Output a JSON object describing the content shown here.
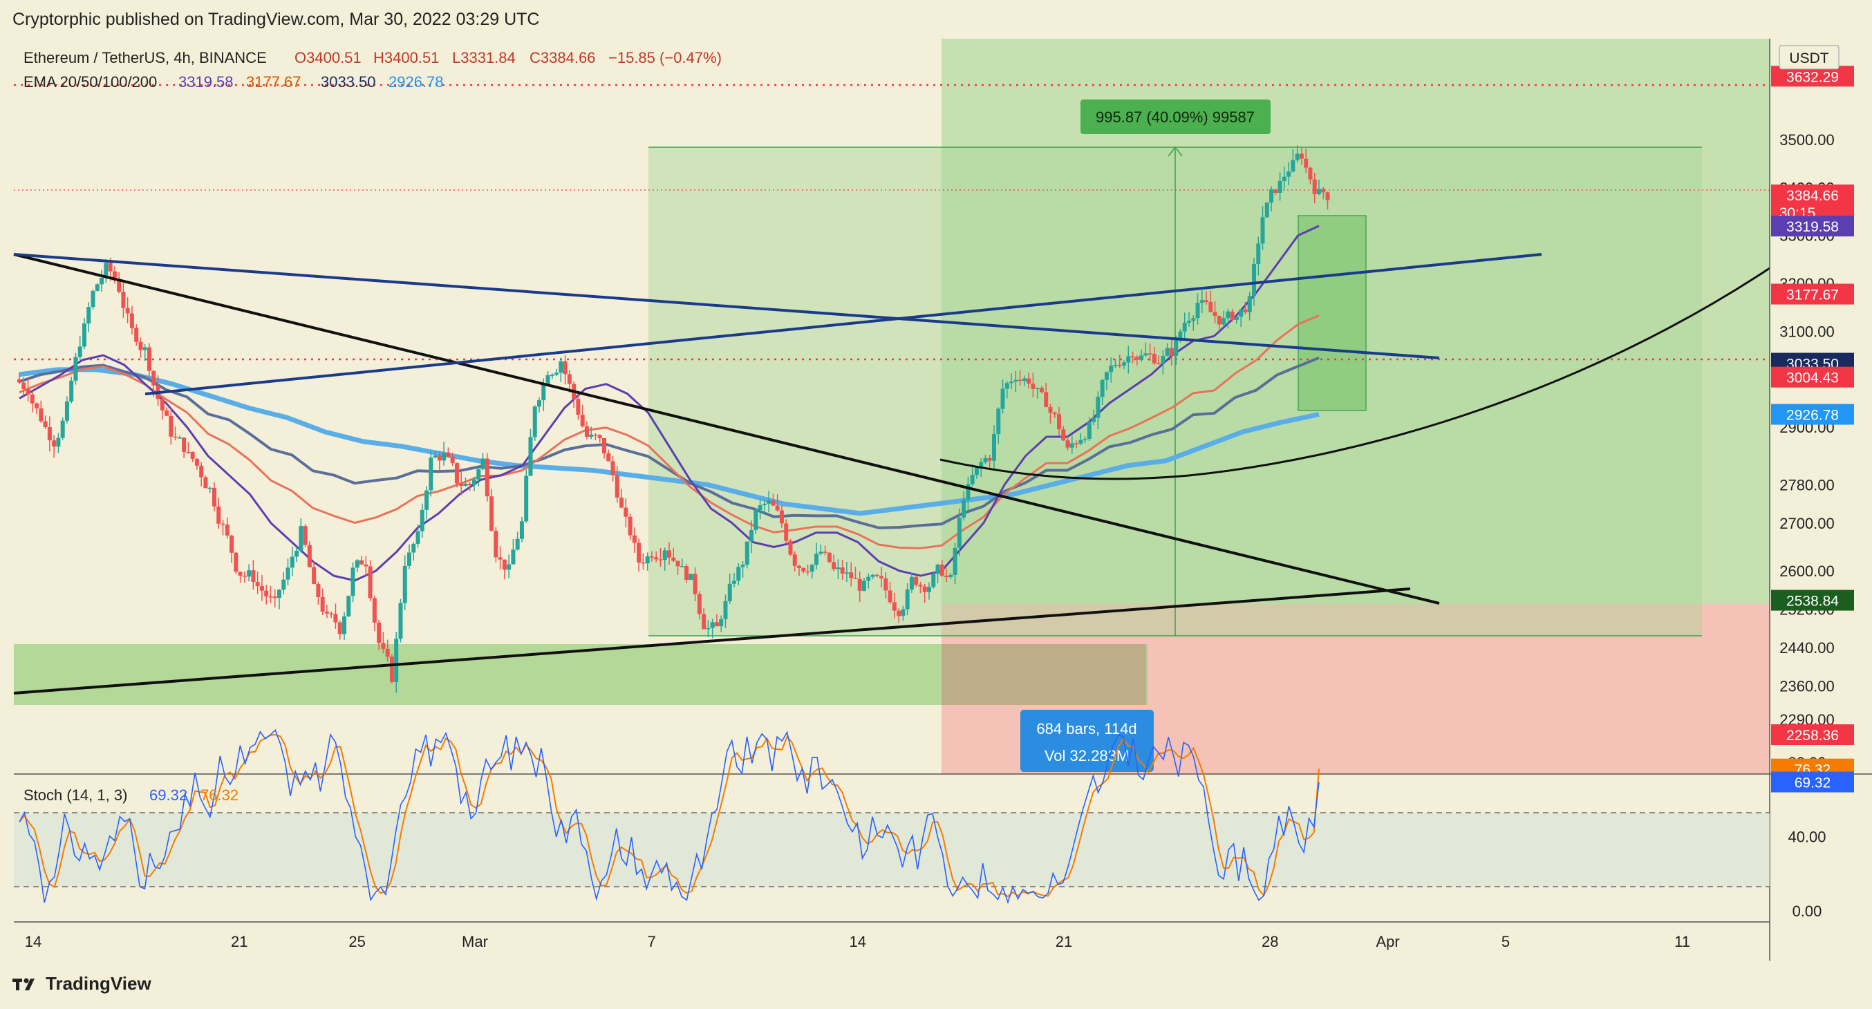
{
  "header": {
    "published": "Cryptorphic published on TradingView.com, Mar 30, 2022 03:29 UTC"
  },
  "footer": {
    "brand": "TradingView",
    "logo_icon": "tradingview-logo-icon"
  },
  "legend": {
    "symbol": "Ethereum / TetherUS, 4h, BINANCE",
    "open": "O3400.51",
    "high": "H3400.51",
    "low": "L3331.84",
    "close": "C3384.66",
    "change": "−15.85 (−0.47%)",
    "ema_label": "EMA 20/50/100/200",
    "ema20": "3319.58",
    "ema50": "3177.67",
    "ema100": "3033.50",
    "ema200": "2926.78",
    "stoch_label": "Stoch (14, 1, 3)",
    "stoch_k": "69.32",
    "stoch_d": "76.32",
    "currency": "USDT",
    "measure_box": "995.87 (40.09%) 99587",
    "range_line1": "684 bars, 114d",
    "range_line2": "Vol 32.283M"
  },
  "colors": {
    "background": "#f3efd8",
    "up_candle": "#26a69a",
    "down_candle": "#ef5350",
    "ema20": "#5b3fb0",
    "ema50": "#e8735a",
    "ema100": "#5a6e9a",
    "ema200": "#5aaee8",
    "stoch_k": "#2962ff",
    "stoch_d": "#f57c00",
    "green_zone": "#a8d38d",
    "red_zone": "#f4b9ad"
  },
  "chart_data": {
    "type": "candlestick",
    "title": "Ethereum / TetherUS, 4h, BINANCE",
    "ylim": [
      2250,
      3720
    ],
    "price_ticks": [
      3500.0,
      3400.0,
      3300.0,
      3200.0,
      3100.0,
      3000.0,
      2900.0,
      2780.0,
      2700.0,
      2600.0,
      2520.0,
      2440.0,
      2360.0,
      2290.0
    ],
    "price_tick_labels": [
      "3500.00",
      "3400.00",
      "3300.00",
      "3200.00",
      "3100.00",
      "3000.00",
      "2900.00",
      "2780.00",
      "2700.00",
      "2600.00",
      "2520.00",
      "2440.00",
      "2360.00",
      "2290.00"
    ],
    "x_ticks": [
      {
        "label": "14",
        "day": 0
      },
      {
        "label": "21",
        "day": 7
      },
      {
        "label": "25",
        "day": 11
      },
      {
        "label": "Mar",
        "day": 15
      },
      {
        "label": "7",
        "day": 21
      },
      {
        "label": "14",
        "day": 28
      },
      {
        "label": "21",
        "day": 35
      },
      {
        "label": "28",
        "day": 42
      },
      {
        "label": "Apr",
        "day": 46
      },
      {
        "label": "5",
        "day": 50
      },
      {
        "label": "11",
        "day": 56
      }
    ],
    "price_labels": [
      {
        "value": 3632.29,
        "text": "3632.29",
        "color": "#f23645"
      },
      {
        "value": 3384.66,
        "text": "3384.66",
        "color": "#f23645",
        "sub": "30:15"
      },
      {
        "value": 3319.58,
        "text": "3319.58",
        "color": "#5b3fb0"
      },
      {
        "value": 3177.67,
        "text": "3177.67",
        "color": "#f23645"
      },
      {
        "value": 3033.5,
        "text": "3033.50",
        "color": "#1a2a5e"
      },
      {
        "value": 3004.43,
        "text": "3004.43",
        "color": "#f23645"
      },
      {
        "value": 2926.78,
        "text": "2926.78",
        "color": "#2196f3"
      },
      {
        "value": 2538.84,
        "text": "2538.84",
        "color": "#1b5e20"
      },
      {
        "value": 2258.36,
        "text": "2258.36",
        "color": "#f23645"
      }
    ],
    "candles_close": [
      2980,
      2920,
      2870,
      2940,
      3080,
      3180,
      3230,
      3190,
      3100,
      3060,
      2960,
      2890,
      2860,
      2820,
      2770,
      2690,
      2610,
      2590,
      2560,
      2530,
      2600,
      2680,
      2560,
      2500,
      2480,
      2600,
      2620,
      2450,
      2380,
      2620,
      2670,
      2830,
      2840,
      2790,
      2780,
      2830,
      2640,
      2600,
      2700,
      2950,
      3020,
      3040,
      2960,
      2880,
      2870,
      2800,
      2700,
      2620,
      2640,
      2650,
      2620,
      2580,
      2490,
      2480,
      2560,
      2620,
      2720,
      2740,
      2700,
      2620,
      2610,
      2640,
      2600,
      2590,
      2570,
      2580,
      2560,
      2520,
      2580,
      2570,
      2600,
      2580,
      2760,
      2810,
      2840,
      2980,
      3010,
      3000,
      2960,
      2920,
      2850,
      2880,
      2920,
      3010,
      3040,
      3060,
      3050,
      3040,
      3060,
      3120,
      3160,
      3140,
      3120,
      3130,
      3160,
      3340,
      3400,
      3440,
      3470,
      3400,
      3384.66
    ],
    "ema20": [
      2960,
      2985,
      3010,
      3040,
      3050,
      3030,
      2990,
      2950,
      2900,
      2840,
      2800,
      2760,
      2700,
      2660,
      2620,
      2590,
      2580,
      2600,
      2640,
      2690,
      2720,
      2760,
      2790,
      2800,
      2820,
      2880,
      2940,
      2980,
      2990,
      2970,
      2930,
      2860,
      2790,
      2730,
      2700,
      2660,
      2650,
      2660,
      2680,
      2680,
      2660,
      2620,
      2600,
      2590,
      2600,
      2650,
      2700,
      2780,
      2840,
      2880,
      2880,
      2910,
      2950,
      2980,
      3010,
      3050,
      3080,
      3090,
      3130,
      3180,
      3240,
      3300,
      3320
    ],
    "ema200": [
      3010,
      3020,
      3020,
      3010,
      2990,
      2965,
      2940,
      2920,
      2890,
      2870,
      2860,
      2845,
      2830,
      2820,
      2815,
      2810,
      2800,
      2790,
      2780,
      2760,
      2740,
      2730,
      2720,
      2730,
      2740,
      2750,
      2760,
      2780,
      2800,
      2820,
      2830,
      2860,
      2890,
      2910,
      2926.78
    ],
    "stoch": {
      "k_last": 69.32,
      "d_last": 76.32,
      "levels": [
        80,
        20
      ],
      "ticks": [
        {
          "value": 80,
          "label": "80.00"
        },
        {
          "value": 40,
          "label": "40.00"
        },
        {
          "value": 0,
          "label": "0.00"
        }
      ]
    }
  }
}
